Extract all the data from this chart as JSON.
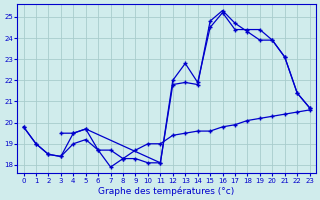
{
  "xlabel": "Graphe des températures (°c)",
  "bg_color": "#d0ecec",
  "grid_color": "#a8cccc",
  "line_color": "#0000cc",
  "xlim": [
    -0.5,
    23.5
  ],
  "ylim": [
    17.6,
    25.6
  ],
  "yticks": [
    18,
    19,
    20,
    21,
    22,
    23,
    24,
    25
  ],
  "xticks": [
    0,
    1,
    2,
    3,
    4,
    5,
    6,
    7,
    8,
    9,
    10,
    11,
    12,
    13,
    14,
    15,
    16,
    17,
    18,
    19,
    20,
    21,
    22,
    23
  ],
  "series1_x": [
    0,
    1,
    2,
    3,
    4,
    5,
    6,
    7,
    8,
    9,
    10,
    11,
    12,
    13,
    14,
    15,
    16,
    17,
    18,
    19,
    20,
    21,
    22,
    23
  ],
  "series1_y": [
    19.8,
    19.0,
    18.5,
    18.4,
    19.0,
    19.2,
    18.7,
    18.7,
    18.3,
    18.7,
    19.0,
    19.0,
    19.4,
    19.5,
    19.6,
    19.6,
    19.8,
    19.9,
    20.1,
    20.2,
    20.3,
    20.4,
    20.5,
    20.6
  ],
  "series2_x": [
    0,
    1,
    2,
    3,
    4,
    5,
    6,
    7,
    8,
    9,
    10,
    11,
    12,
    13,
    14,
    15,
    16,
    17,
    18,
    19,
    20,
    21,
    22,
    23
  ],
  "series2_y": [
    19.8,
    19.0,
    18.5,
    18.4,
    19.5,
    19.7,
    18.7,
    17.9,
    18.3,
    18.3,
    18.1,
    18.1,
    21.8,
    21.9,
    21.8,
    24.8,
    25.3,
    24.7,
    24.3,
    23.9,
    23.9,
    23.1,
    21.4,
    20.7
  ],
  "series3_x": [
    3,
    4,
    5,
    11,
    12,
    13,
    14,
    15,
    16,
    17,
    18,
    19,
    20,
    21,
    22,
    23
  ],
  "series3_y": [
    19.5,
    19.5,
    19.7,
    18.1,
    22.0,
    22.8,
    21.9,
    24.5,
    25.2,
    24.4,
    24.4,
    24.4,
    23.9,
    23.1,
    21.4,
    20.7
  ]
}
